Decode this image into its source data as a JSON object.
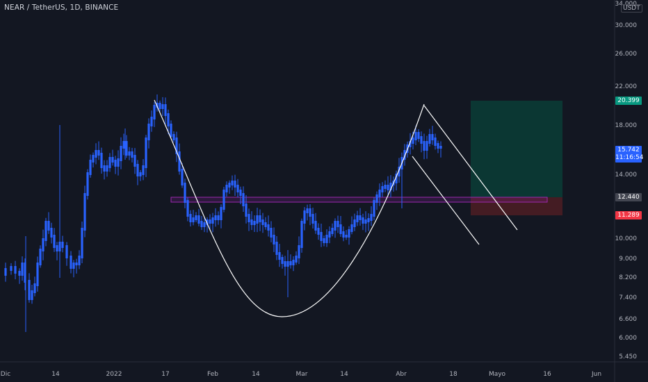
{
  "header": {
    "title": "NEAR / TetherUS, 1D, BINANCE",
    "currency": "USDT"
  },
  "colors": {
    "background": "#131722",
    "candle_up": "#2962ff",
    "candle_down": "#2962ff",
    "pattern_line": "#ffffff",
    "zone_border": "#9c27b0",
    "profit_zone": "#0b3b35",
    "loss_zone": "#4a1d24",
    "badge_target": "#089981",
    "badge_current": "#2962ff",
    "badge_entry": "#434651",
    "badge_stop": "#f23645"
  },
  "badges": {
    "target": "20.399",
    "current_price": "15.742",
    "countdown": "11:16:54",
    "entry": "12.440",
    "stop": "11.289"
  },
  "chart_data": {
    "type": "candlestick",
    "title": "NEAR / TetherUS, 1D, BINANCE",
    "y_scale": "log",
    "y_ticks": [
      "34.000",
      "30.000",
      "26.000",
      "22.000",
      "18.000",
      "14.000",
      "10.000",
      "9.000",
      "8.200",
      "7.400",
      "6.600",
      "6.000",
      "5.450"
    ],
    "x_ticks": [
      "Dic",
      "14",
      "2022",
      "17",
      "Feb",
      "14",
      "Mar",
      "14",
      "Abr",
      "18",
      "Mayo",
      "16",
      "Jun"
    ],
    "ylim": [
      5.2,
      35.0
    ],
    "x": [
      "2021-12-01",
      "2021-12-15",
      "2022-01-04",
      "2022-01-16",
      "2022-02-01",
      "2022-02-15",
      "2022-02-22",
      "2022-03-01",
      "2022-03-15",
      "2022-03-25",
      "2022-04-02",
      "2022-04-07",
      "2022-04-12"
    ],
    "close": [
      8.3,
      10.5,
      16.0,
      20.6,
      10.9,
      11.2,
      9.0,
      12.0,
      10.1,
      11.3,
      16.0,
      18.2,
      15.74
    ],
    "annotations": {
      "support_zone": [
        12.0,
        12.4
      ],
      "long_position": {
        "entry": 12.44,
        "target": 20.399,
        "stop": 11.289
      },
      "pattern": "cup with channel"
    }
  }
}
